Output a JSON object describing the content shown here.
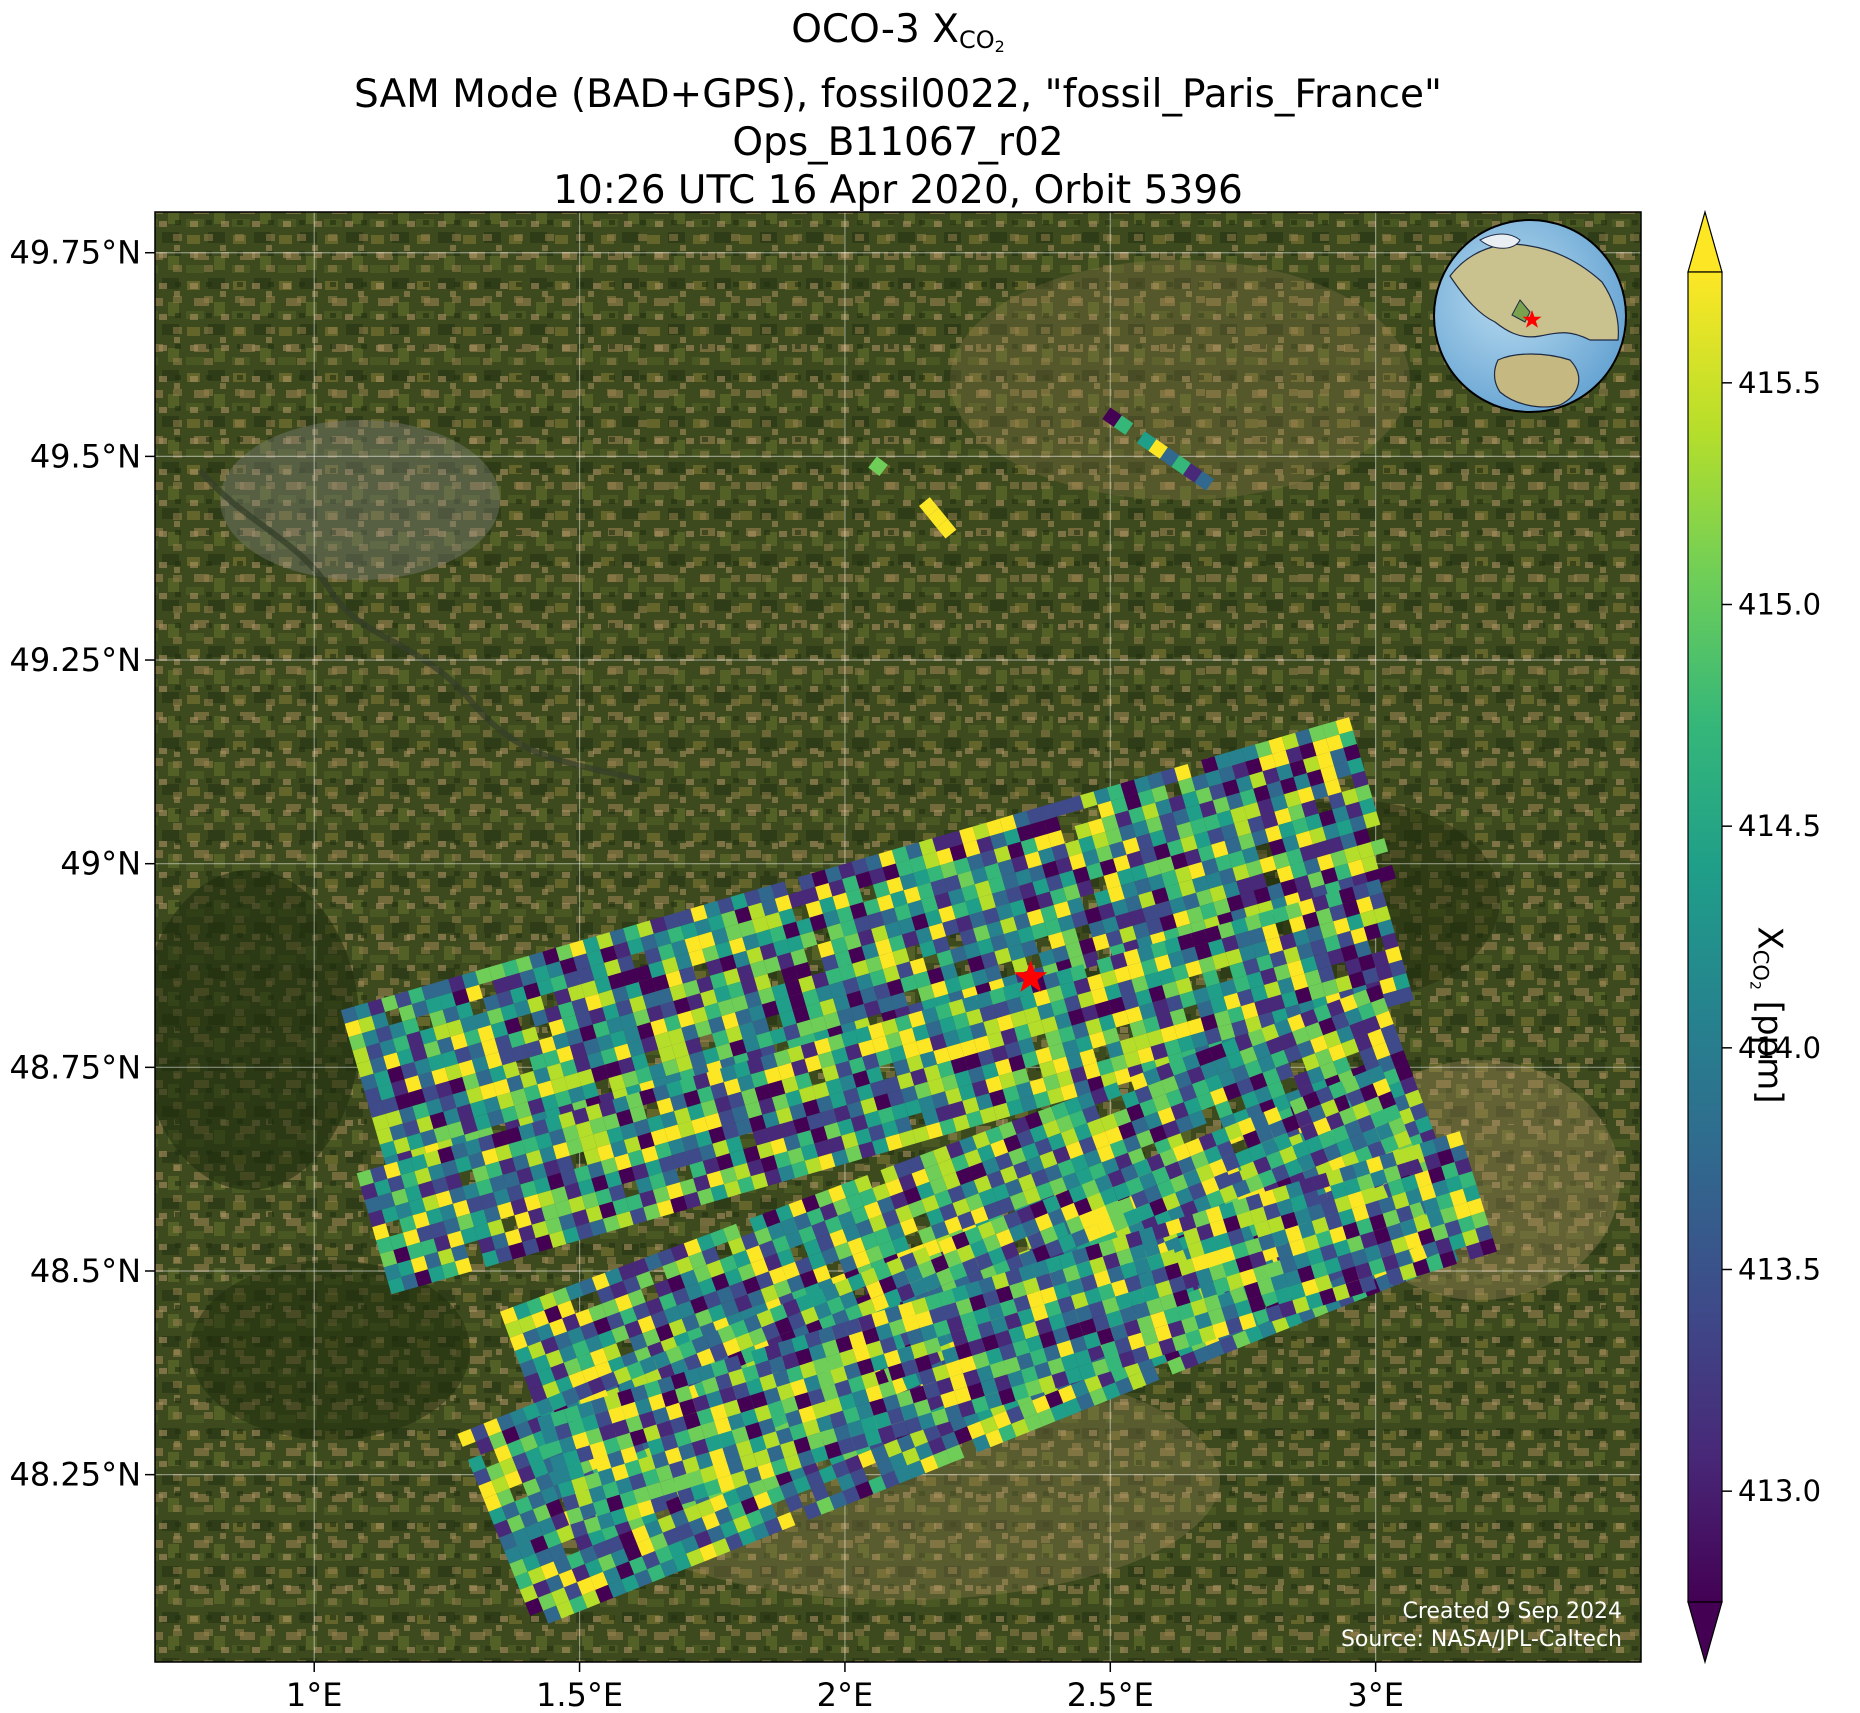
{
  "title": {
    "line1_prefix": "OCO-3 X",
    "line1_sub": "CO",
    "line1_sub2": "2",
    "line2": "SAM Mode (BAD+GPS), fossil0022, \"fossil_Paris_France\"",
    "line3": "Ops_B11067_r02",
    "line4": "10:26 UTC 16 Apr 2020, Orbit 5396"
  },
  "credits": {
    "created": "Created 9 Sep 2024",
    "source": "Source: NASA/JPL-Caltech"
  },
  "map": {
    "lon_range": [
      0.7,
      3.5
    ],
    "lat_range": [
      48.02,
      49.8
    ],
    "x_ticks": [
      {
        "value": 1.0,
        "label": "1°E"
      },
      {
        "value": 1.5,
        "label": "1.5°E"
      },
      {
        "value": 2.0,
        "label": "2°E"
      },
      {
        "value": 2.5,
        "label": "2.5°E"
      },
      {
        "value": 3.0,
        "label": "3°E"
      }
    ],
    "y_ticks": [
      {
        "value": 49.75,
        "label": "49.75°N"
      },
      {
        "value": 49.5,
        "label": "49.5°N"
      },
      {
        "value": 49.25,
        "label": "49.25°N"
      },
      {
        "value": 49.0,
        "label": "49°N"
      },
      {
        "value": 48.75,
        "label": "48.75°N"
      },
      {
        "value": 48.5,
        "label": "48.5°N"
      },
      {
        "value": 48.25,
        "label": "48.25°N"
      }
    ],
    "target_marker": {
      "lon": 2.35,
      "lat": 48.86,
      "color": "#ff0000",
      "icon": "star-icon"
    },
    "background": "satellite-imagery",
    "grid": true
  },
  "colorbar": {
    "label_prefix": "X",
    "label_sub": "CO",
    "label_sub2": "2",
    "label_suffix": " [ppm]",
    "range": [
      412.75,
      415.75
    ],
    "extend": "both",
    "colormap": "viridis",
    "ticks": [
      {
        "value": 413.0,
        "label": "413.0"
      },
      {
        "value": 413.5,
        "label": "413.5"
      },
      {
        "value": 414.0,
        "label": "414.0"
      },
      {
        "value": 414.5,
        "label": "414.5"
      },
      {
        "value": 415.0,
        "label": "415.0"
      },
      {
        "value": 415.5,
        "label": "415.5"
      }
    ]
  },
  "inset_globe": {
    "icon": "globe-icon",
    "marker_color": "#ff0000"
  },
  "chart_data": {
    "type": "heatmap",
    "description": "OCO-3 XCO2 soundings in SAM mode over Paris",
    "value_range": [
      412.75,
      415.75
    ],
    "swaths": [
      {
        "name": "swath-1",
        "lon_start": 1.05,
        "lat_start": 48.82,
        "lon_end": 2.95,
        "lat_end": 49.18,
        "width_deg": 0.2
      },
      {
        "name": "swath-2",
        "lon_start": 1.08,
        "lat_start": 48.62,
        "lon_end": 3.0,
        "lat_end": 48.98,
        "width_deg": 0.15
      },
      {
        "name": "swath-3",
        "lon_start": 1.35,
        "lat_start": 48.45,
        "lon_end": 3.0,
        "lat_end": 48.85,
        "width_deg": 0.3
      },
      {
        "name": "swath-4",
        "lon_start": 1.27,
        "lat_start": 48.3,
        "lon_end": 3.0,
        "lat_end": 48.75,
        "width_deg": 0.25
      },
      {
        "name": "swath-5",
        "lon_start": 1.42,
        "lat_start": 48.32,
        "lon_end": 3.15,
        "lat_end": 48.67,
        "width_deg": 0.15
      }
    ],
    "fragments": [
      {
        "name": "fragment-north-1",
        "lon_start": 2.5,
        "lat_start": 49.56,
        "lon_end": 2.7,
        "lat_end": 49.47,
        "width_deg": 0.02
      },
      {
        "name": "fragment-north-2",
        "lon_start": 2.16,
        "lat_start": 49.45,
        "lon_end": 2.21,
        "lat_end": 49.41,
        "width_deg": 0.02
      },
      {
        "name": "fragment-north-3",
        "lon_start": 2.06,
        "lat_start": 49.5,
        "lon_end": 2.08,
        "lat_end": 49.49,
        "width_deg": 0.01
      }
    ]
  }
}
